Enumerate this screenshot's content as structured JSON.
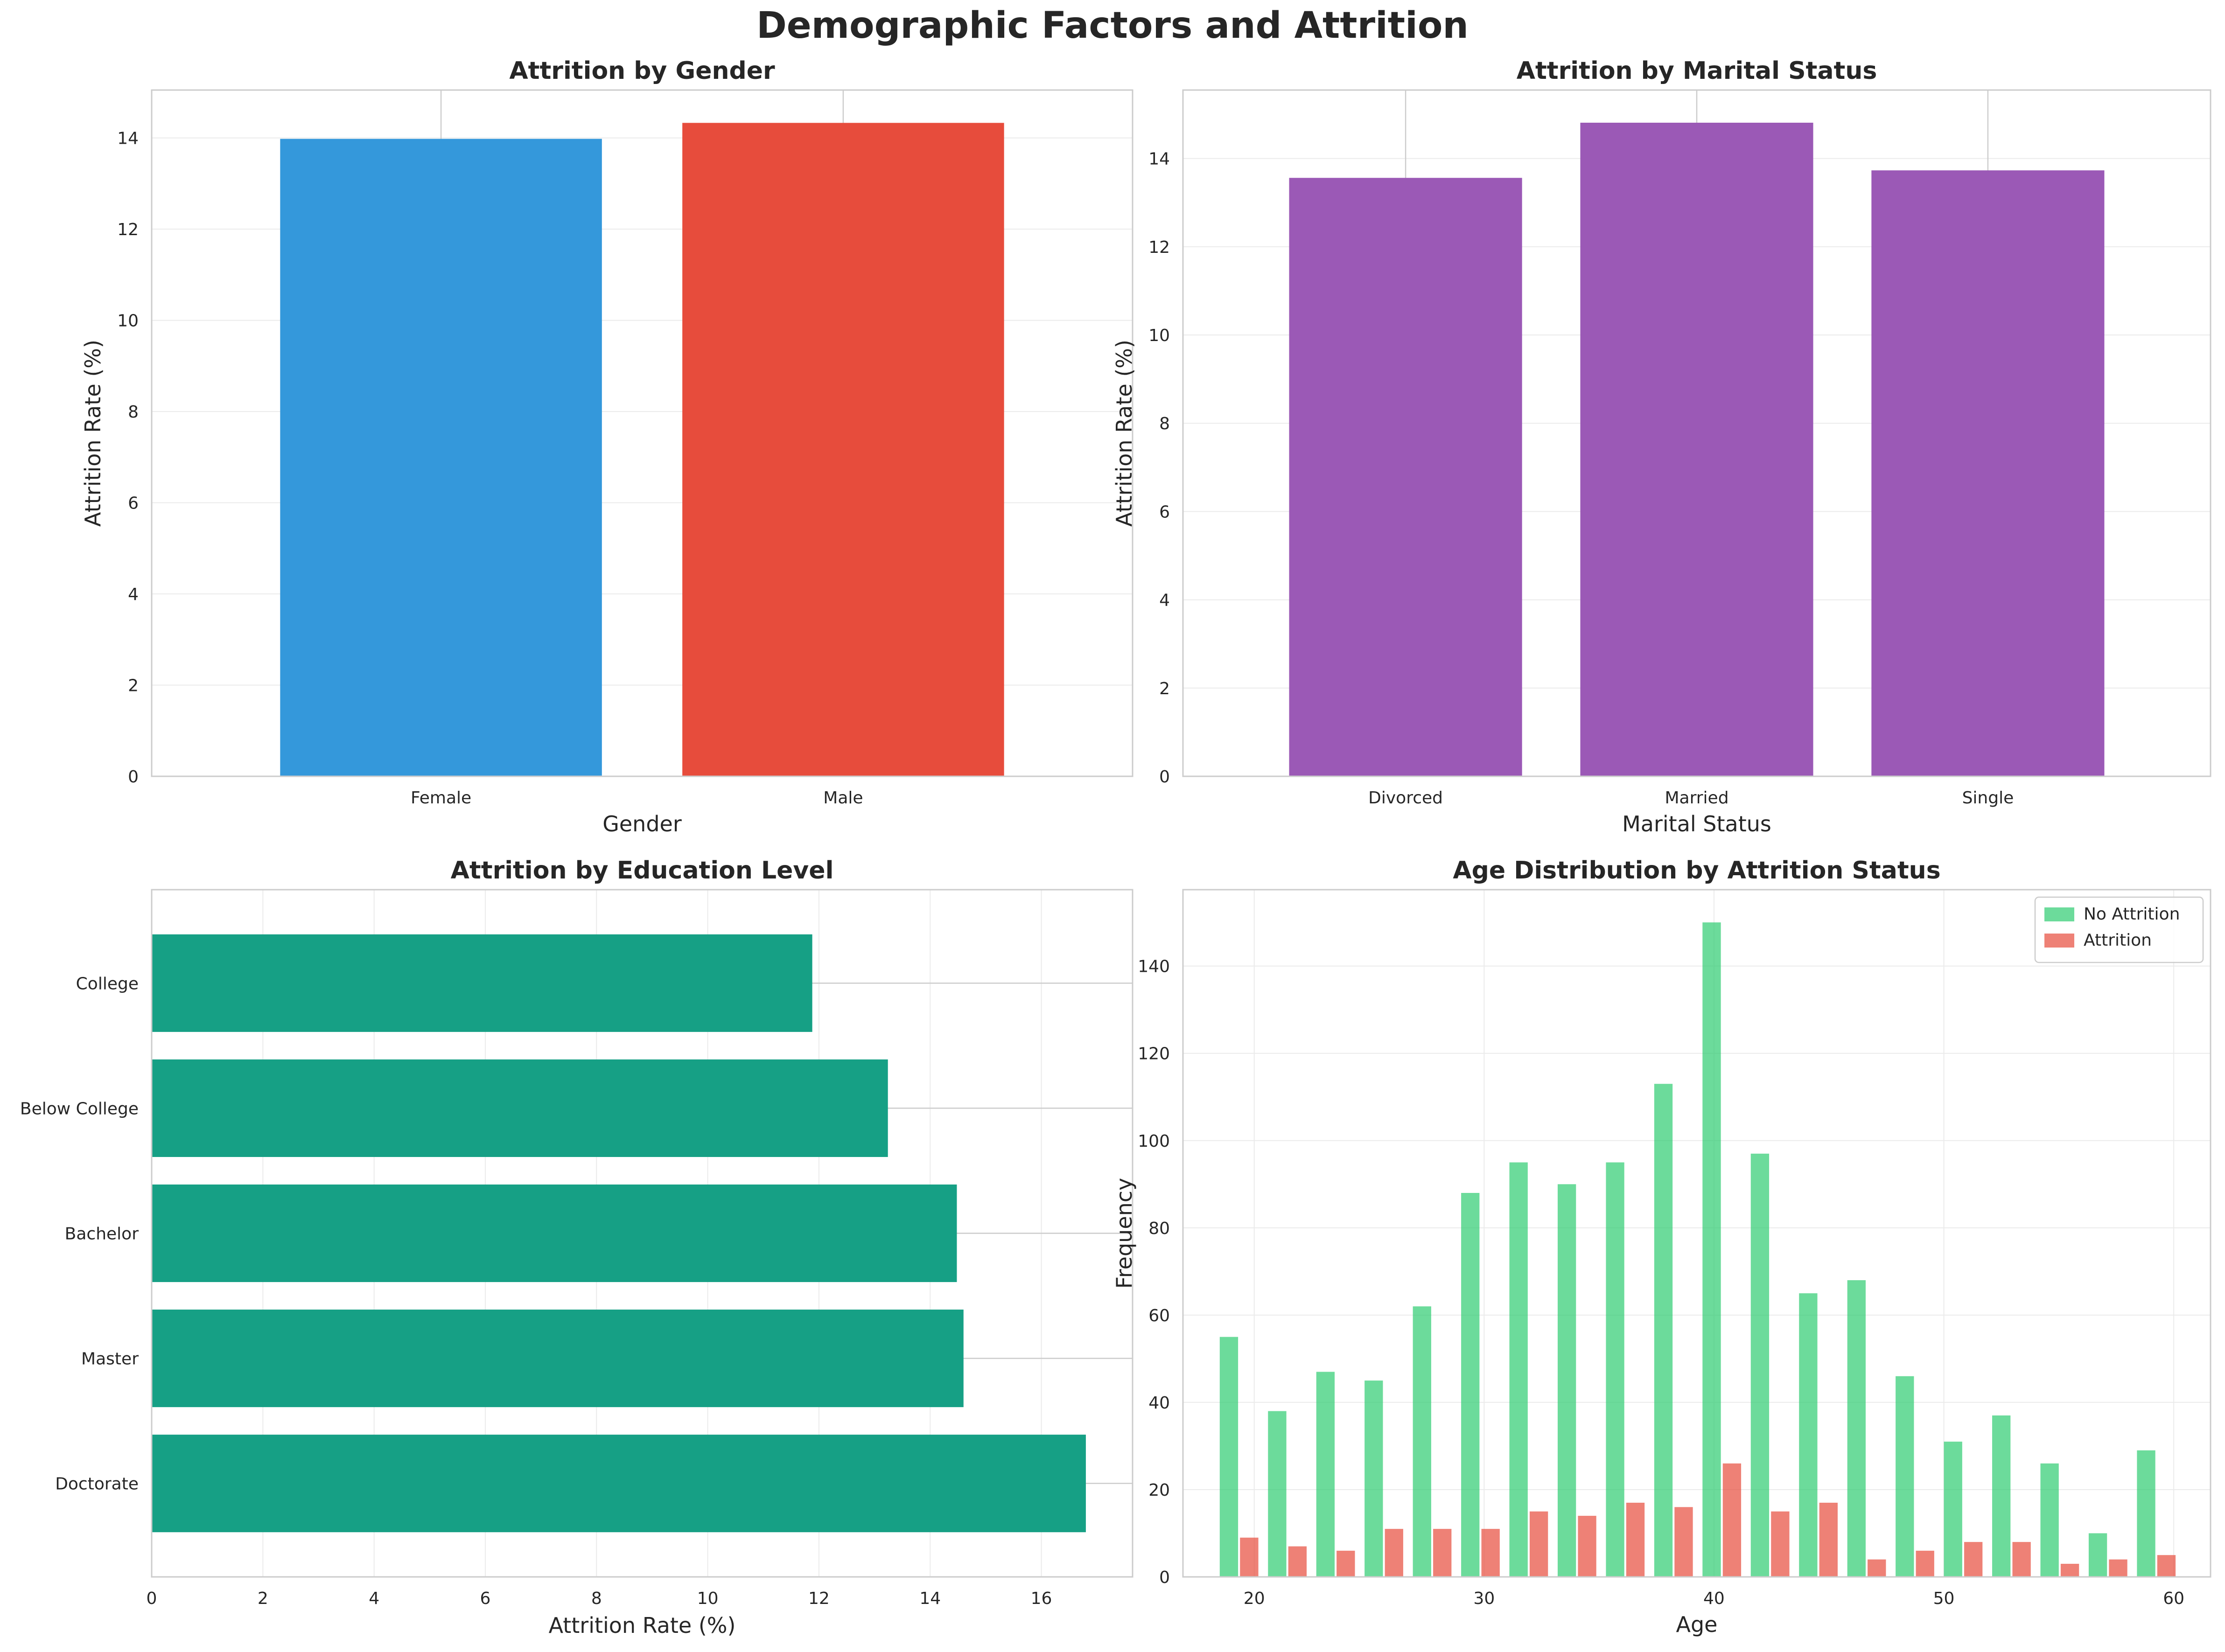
{
  "figure": {
    "title": "Demographic Factors and Attrition"
  },
  "chart_data": [
    {
      "id": "gender",
      "type": "bar",
      "title": "Attrition by Gender",
      "xlabel": "Gender",
      "ylabel": "Attrition Rate (%)",
      "categories": [
        "Female",
        "Male"
      ],
      "values": [
        13.98,
        14.33
      ],
      "colors": [
        "#3498db",
        "#e74c3c"
      ],
      "ylim": [
        0,
        15.05
      ],
      "yticks": [
        0,
        2,
        4,
        6,
        8,
        10,
        12,
        14
      ],
      "grid": true
    },
    {
      "id": "marital",
      "type": "bar",
      "title": "Attrition by Marital Status",
      "xlabel": "Marital Status",
      "ylabel": "Attrition Rate (%)",
      "categories": [
        "Divorced",
        "Married",
        "Single"
      ],
      "values": [
        13.56,
        14.81,
        13.73
      ],
      "colors": [
        "#9b59b6",
        "#9b59b6",
        "#9b59b6"
      ],
      "ylim": [
        0,
        15.55
      ],
      "yticks": [
        0,
        2,
        4,
        6,
        8,
        10,
        12,
        14
      ],
      "grid": true
    },
    {
      "id": "education",
      "type": "bar",
      "orientation": "horizontal",
      "title": "Attrition by Education Level",
      "xlabel": "Attrition Rate (%)",
      "ylabel": "",
      "categories": [
        "Doctorate",
        "Master",
        "Bachelor",
        "Below College",
        "College"
      ],
      "values": [
        16.8,
        14.6,
        14.48,
        13.24,
        11.88
      ],
      "colors": [
        "#16a085"
      ],
      "xlim": [
        0,
        17.64
      ],
      "xticks": [
        0,
        2,
        4,
        6,
        8,
        10,
        12,
        14,
        16
      ],
      "grid": true
    },
    {
      "id": "age",
      "type": "bar",
      "title": "Age Distribution by Attrition Status",
      "xlabel": "Age",
      "ylabel": "Frequency",
      "x": [
        18.5,
        20.6,
        22.7,
        24.8,
        26.9,
        29.0,
        31.1,
        33.2,
        35.3,
        37.4,
        39.5,
        41.6,
        43.7,
        45.8,
        47.9,
        50.0,
        52.1,
        54.2,
        56.3,
        58.4
      ],
      "series": [
        {
          "name": "No Attrition",
          "color": "#2ecc71",
          "values": [
            55,
            38,
            47,
            45,
            62,
            88,
            95,
            90,
            95,
            113,
            150,
            97,
            65,
            68,
            46,
            31,
            37,
            26,
            10,
            29
          ]
        },
        {
          "name": "Attrition",
          "color": "#e74c3c",
          "values": [
            9,
            7,
            6,
            11,
            11,
            11,
            15,
            14,
            17,
            16,
            26,
            15,
            17,
            4,
            6,
            8,
            8,
            3,
            4,
            5
          ]
        }
      ],
      "xlim": [
        16.9,
        61.6
      ],
      "ylim": [
        0,
        157.5
      ],
      "xticks": [
        20,
        30,
        40,
        50,
        60
      ],
      "yticks": [
        0,
        20,
        40,
        60,
        80,
        100,
        120,
        140
      ],
      "legend": "top-right",
      "grid": true
    }
  ]
}
